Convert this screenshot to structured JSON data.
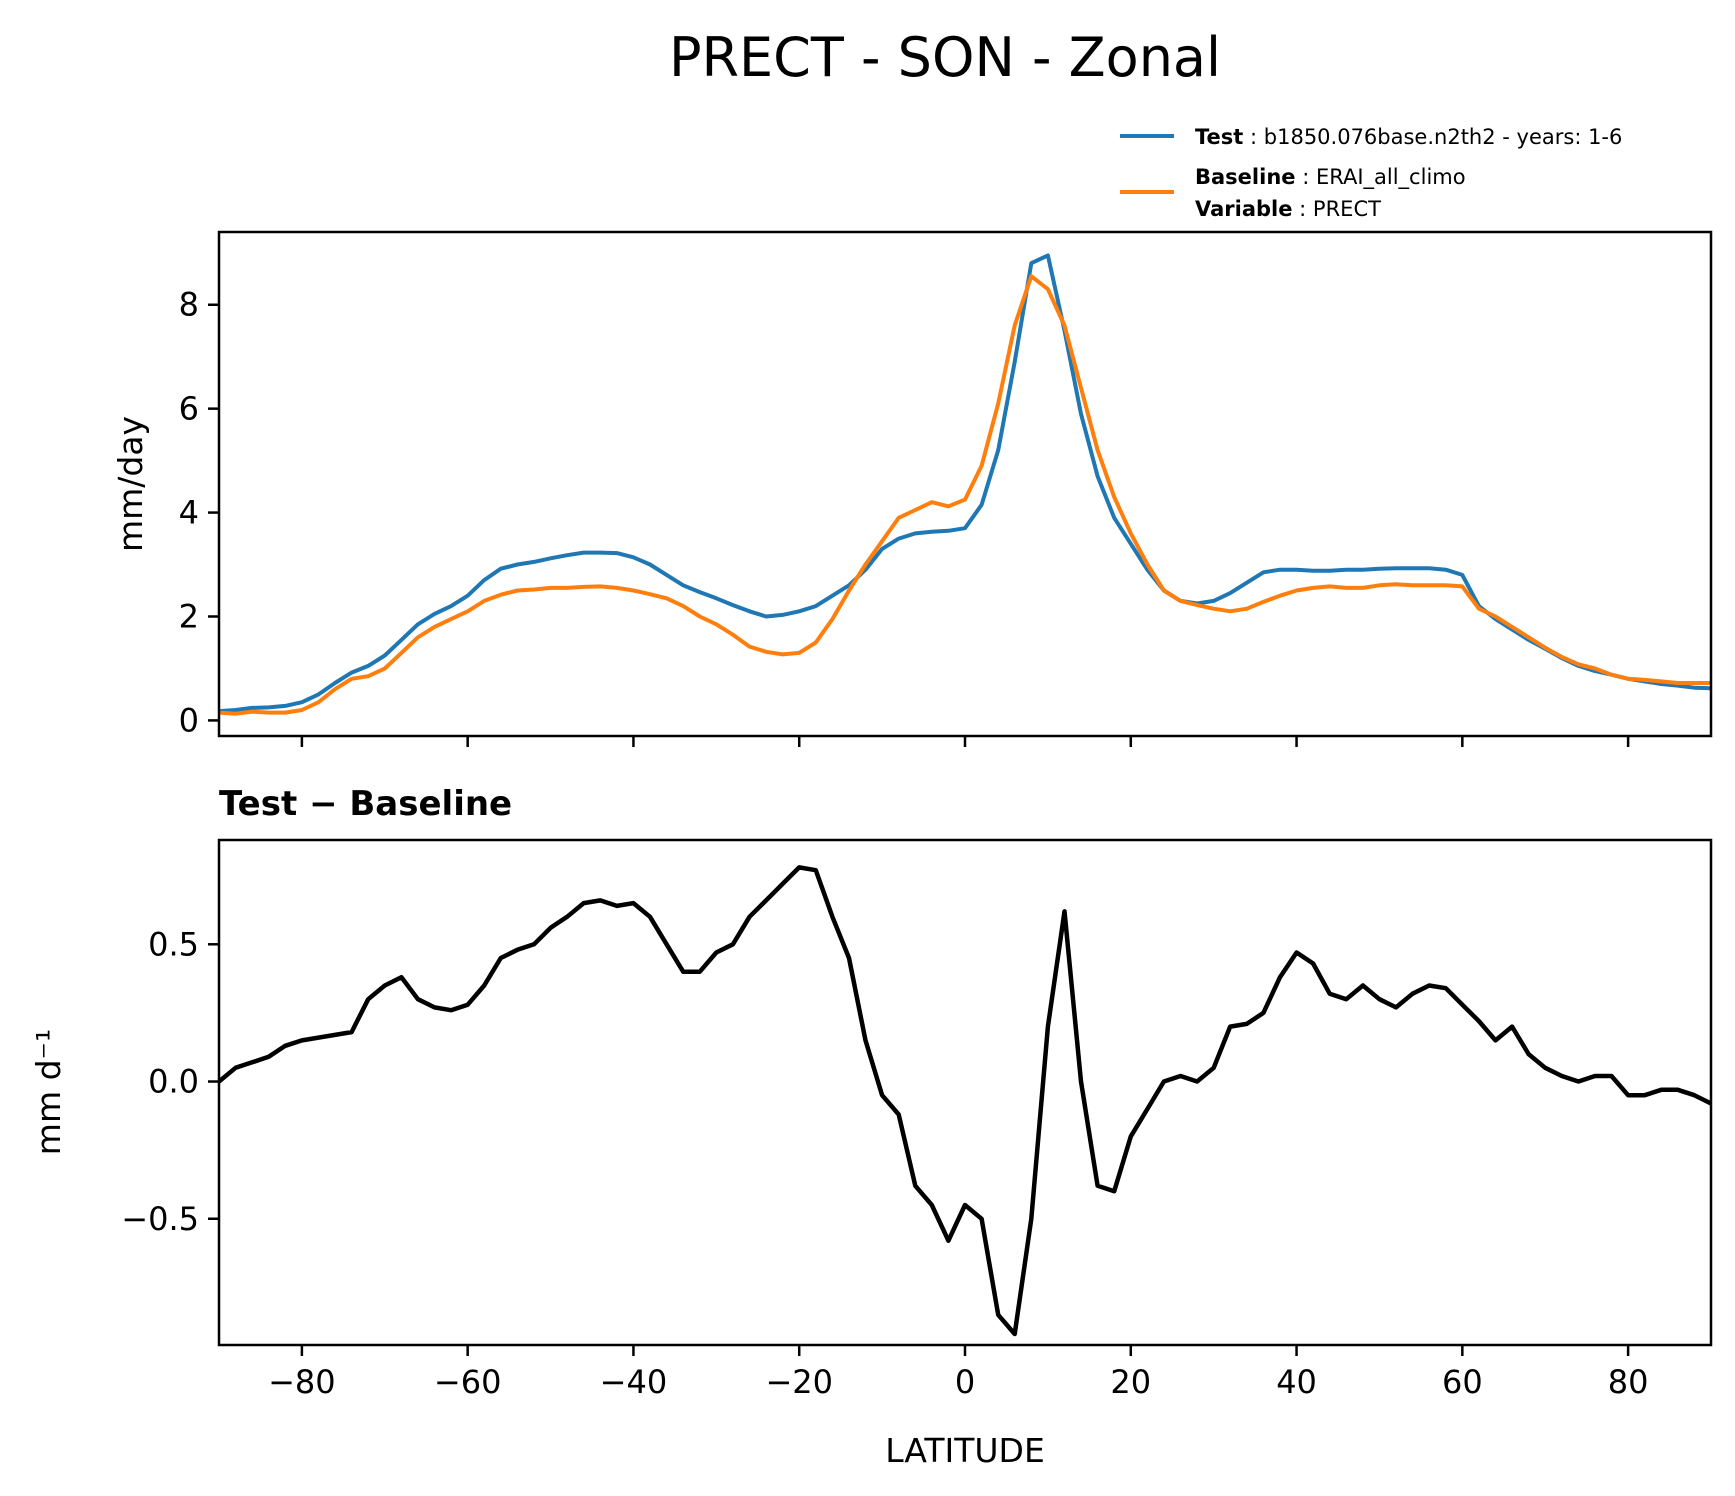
{
  "chart_data": [
    {
      "type": "line",
      "title": "PRECT - SON - Zonal",
      "ylabel": "mm/day",
      "xlim": [
        -90,
        90
      ],
      "ylim": [
        -0.3,
        9.4
      ],
      "yticks": [
        0,
        2,
        4,
        6,
        8
      ],
      "xticks": [
        -80,
        -60,
        -40,
        -20,
        0,
        20,
        40,
        60,
        80
      ],
      "grid": false,
      "legend": {
        "placement": "above-right",
        "entries": [
          {
            "key": "Test",
            "text": "b1850.076base.n2th2 - years: 1-6",
            "color": "#1f77b4"
          },
          {
            "key": "Baseline",
            "text": "ERAI_all_climo",
            "color": "#ff7f0e"
          },
          {
            "key": "Variable",
            "text": "PRECT",
            "color": ""
          }
        ]
      },
      "series": [
        {
          "name": "Test",
          "color": "#1f77b4",
          "x": [
            -90,
            -88,
            -86,
            -84,
            -82,
            -80,
            -78,
            -76,
            -74,
            -72,
            -70,
            -68,
            -66,
            -64,
            -62,
            -60,
            -58,
            -56,
            -54,
            -52,
            -50,
            -48,
            -46,
            -44,
            -42,
            -40,
            -38,
            -36,
            -34,
            -32,
            -30,
            -28,
            -26,
            -24,
            -22,
            -20,
            -18,
            -16,
            -14,
            -12,
            -10,
            -8,
            -6,
            -4,
            -2,
            0,
            2,
            4,
            6,
            8,
            10,
            12,
            14,
            16,
            18,
            20,
            22,
            24,
            26,
            28,
            30,
            32,
            34,
            36,
            38,
            40,
            42,
            44,
            46,
            48,
            50,
            52,
            54,
            56,
            58,
            60,
            62,
            64,
            66,
            68,
            70,
            72,
            74,
            76,
            78,
            80,
            82,
            84,
            86,
            88,
            90
          ],
          "y": [
            0.18,
            0.2,
            0.24,
            0.25,
            0.28,
            0.35,
            0.5,
            0.72,
            0.92,
            1.05,
            1.25,
            1.55,
            1.85,
            2.05,
            2.2,
            2.4,
            2.7,
            2.92,
            3.0,
            3.05,
            3.12,
            3.18,
            3.23,
            3.23,
            3.22,
            3.14,
            3.0,
            2.8,
            2.6,
            2.47,
            2.35,
            2.22,
            2.1,
            2.0,
            2.03,
            2.1,
            2.2,
            2.4,
            2.6,
            2.9,
            3.3,
            3.5,
            3.6,
            3.63,
            3.65,
            3.7,
            4.15,
            5.2,
            6.9,
            8.8,
            8.95,
            7.5,
            5.9,
            4.7,
            3.9,
            3.4,
            2.9,
            2.5,
            2.3,
            2.25,
            2.3,
            2.45,
            2.65,
            2.85,
            2.9,
            2.9,
            2.88,
            2.88,
            2.9,
            2.9,
            2.92,
            2.93,
            2.93,
            2.93,
            2.9,
            2.8,
            2.2,
            1.95,
            1.75,
            1.55,
            1.38,
            1.2,
            1.05,
            0.95,
            0.88,
            0.8,
            0.75,
            0.7,
            0.67,
            0.63,
            0.62
          ]
        },
        {
          "name": "Baseline",
          "color": "#ff7f0e",
          "x": [
            -90,
            -88,
            -86,
            -84,
            -82,
            -80,
            -78,
            -76,
            -74,
            -72,
            -70,
            -68,
            -66,
            -64,
            -62,
            -60,
            -58,
            -56,
            -54,
            -52,
            -50,
            -48,
            -46,
            -44,
            -42,
            -40,
            -38,
            -36,
            -34,
            -32,
            -30,
            -28,
            -26,
            -24,
            -22,
            -20,
            -18,
            -16,
            -14,
            -12,
            -10,
            -8,
            -6,
            -4,
            -2,
            0,
            2,
            4,
            6,
            8,
            10,
            12,
            14,
            16,
            18,
            20,
            22,
            24,
            26,
            28,
            30,
            32,
            34,
            36,
            38,
            40,
            42,
            44,
            46,
            48,
            50,
            52,
            54,
            56,
            58,
            60,
            62,
            64,
            66,
            68,
            70,
            72,
            74,
            76,
            78,
            80,
            82,
            84,
            86,
            88,
            90
          ],
          "y": [
            0.15,
            0.13,
            0.17,
            0.15,
            0.15,
            0.2,
            0.35,
            0.6,
            0.8,
            0.85,
            1.0,
            1.3,
            1.6,
            1.8,
            1.95,
            2.1,
            2.3,
            2.42,
            2.5,
            2.52,
            2.55,
            2.55,
            2.57,
            2.58,
            2.55,
            2.5,
            2.43,
            2.35,
            2.2,
            2.0,
            1.85,
            1.65,
            1.42,
            1.32,
            1.27,
            1.3,
            1.5,
            1.95,
            2.5,
            3.0,
            3.45,
            3.9,
            4.05,
            4.2,
            4.12,
            4.25,
            4.9,
            6.1,
            7.6,
            8.55,
            8.3,
            7.6,
            6.4,
            5.2,
            4.3,
            3.6,
            3.0,
            2.5,
            2.3,
            2.22,
            2.15,
            2.1,
            2.15,
            2.28,
            2.4,
            2.5,
            2.55,
            2.58,
            2.55,
            2.55,
            2.6,
            2.62,
            2.6,
            2.6,
            2.6,
            2.58,
            2.15,
            2.0,
            1.8,
            1.6,
            1.4,
            1.22,
            1.08,
            1.0,
            0.88,
            0.8,
            0.78,
            0.75,
            0.72,
            0.72,
            0.72
          ]
        }
      ]
    },
    {
      "type": "line",
      "title": "Test − Baseline",
      "xlabel": "LATITUDE",
      "ylabel": "mm d⁻¹",
      "xlim": [
        -90,
        90
      ],
      "ylim": [
        -0.96,
        0.88
      ],
      "yticks": [
        -0.5,
        0.0,
        0.5
      ],
      "ytick_labels": [
        "−0.5",
        "0.0",
        "0.5"
      ],
      "xticks": [
        -80,
        -60,
        -40,
        -20,
        0,
        20,
        40,
        60,
        80
      ],
      "xtick_labels": [
        "−80",
        "−60",
        "−40",
        "−20",
        "0",
        "20",
        "40",
        "60",
        "80"
      ],
      "grid": false,
      "series": [
        {
          "name": "",
          "color": "#000000",
          "x": [
            -90,
            -88,
            -86,
            -84,
            -82,
            -80,
            -78,
            -76,
            -74,
            -72,
            -70,
            -68,
            -66,
            -64,
            -62,
            -60,
            -58,
            -56,
            -54,
            -52,
            -50,
            -48,
            -46,
            -44,
            -42,
            -40,
            -38,
            -36,
            -34,
            -32,
            -30,
            -28,
            -26,
            -24,
            -22,
            -20,
            -18,
            -16,
            -14,
            -12,
            -10,
            -8,
            -6,
            -4,
            -2,
            0,
            2,
            4,
            6,
            8,
            10,
            12,
            14,
            16,
            18,
            20,
            22,
            24,
            26,
            28,
            30,
            32,
            34,
            36,
            38,
            40,
            42,
            44,
            46,
            48,
            50,
            52,
            54,
            56,
            58,
            60,
            62,
            64,
            66,
            68,
            70,
            72,
            74,
            76,
            78,
            80,
            82,
            84,
            86,
            88,
            90
          ],
          "y": [
            0.0,
            0.05,
            0.07,
            0.09,
            0.13,
            0.15,
            0.16,
            0.17,
            0.18,
            0.3,
            0.35,
            0.38,
            0.3,
            0.27,
            0.26,
            0.28,
            0.35,
            0.45,
            0.48,
            0.5,
            0.56,
            0.6,
            0.65,
            0.66,
            0.64,
            0.65,
            0.6,
            0.5,
            0.4,
            0.4,
            0.47,
            0.5,
            0.6,
            0.66,
            0.72,
            0.78,
            0.77,
            0.6,
            0.45,
            0.15,
            -0.05,
            -0.12,
            -0.38,
            -0.45,
            -0.58,
            -0.45,
            -0.5,
            -0.85,
            -0.92,
            -0.5,
            0.2,
            0.62,
            0.0,
            -0.38,
            -0.4,
            -0.2,
            -0.1,
            0.0,
            0.02,
            0.0,
            0.05,
            0.2,
            0.21,
            0.25,
            0.38,
            0.47,
            0.43,
            0.32,
            0.3,
            0.35,
            0.3,
            0.27,
            0.32,
            0.35,
            0.34,
            0.28,
            0.22,
            0.15,
            0.2,
            0.1,
            0.05,
            0.02,
            0.0,
            0.02,
            0.02,
            -0.05,
            -0.05,
            -0.03,
            -0.03,
            -0.05,
            -0.08
          ]
        }
      ]
    }
  ]
}
